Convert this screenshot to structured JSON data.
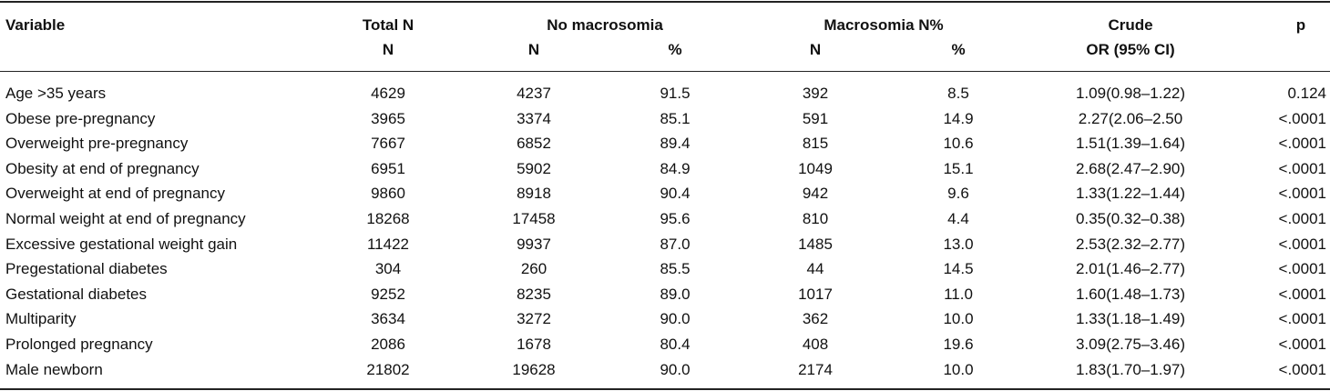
{
  "table": {
    "headers": {
      "variable": "Variable",
      "total_n": "Total N",
      "total_n_sub": "N",
      "no_macro": "No macrosomia",
      "no_macro_n": "N",
      "no_macro_pct": "%",
      "macro": "Macrosomia N%",
      "macro_n": "N",
      "macro_pct": "%",
      "crude": "Crude",
      "crude_sub": "OR (95% CI)",
      "p": "p"
    },
    "rows": [
      {
        "variable": "Age >35 years",
        "total": "4629",
        "no_n": "4237",
        "no_pct": "91.5",
        "m_n": "392",
        "m_pct": "8.5",
        "or": "1.09(0.98–1.22)",
        "p": "0.124"
      },
      {
        "variable": "Obese pre-pregnancy",
        "total": "3965",
        "no_n": "3374",
        "no_pct": "85.1",
        "m_n": "591",
        "m_pct": "14.9",
        "or": "2.27(2.06–2.50",
        "p": "<.0001"
      },
      {
        "variable": "Overweight pre-pregnancy",
        "total": "7667",
        "no_n": "6852",
        "no_pct": "89.4",
        "m_n": "815",
        "m_pct": "10.6",
        "or": "1.51(1.39–1.64)",
        "p": "<.0001"
      },
      {
        "variable": "Obesity at end of pregnancy",
        "total": "6951",
        "no_n": "5902",
        "no_pct": "84.9",
        "m_n": "1049",
        "m_pct": "15.1",
        "or": "2.68(2.47–2.90)",
        "p": "<.0001"
      },
      {
        "variable": "Overweight at end of pregnancy",
        "total": "9860",
        "no_n": "8918",
        "no_pct": "90.4",
        "m_n": "942",
        "m_pct": "9.6",
        "or": "1.33(1.22–1.44)",
        "p": "<.0001"
      },
      {
        "variable": "Normal weight at end of pregnancy",
        "total": "18268",
        "no_n": "17458",
        "no_pct": "95.6",
        "m_n": "810",
        "m_pct": "4.4",
        "or": "0.35(0.32–0.38)",
        "p": "<.0001"
      },
      {
        "variable": "Excessive gestational weight gain",
        "total": "11422",
        "no_n": "9937",
        "no_pct": "87.0",
        "m_n": "1485",
        "m_pct": "13.0",
        "or": "2.53(2.32–2.77)",
        "p": "<.0001"
      },
      {
        "variable": "Pregestational diabetes",
        "total": "304",
        "no_n": "260",
        "no_pct": "85.5",
        "m_n": "44",
        "m_pct": "14.5",
        "or": "2.01(1.46–2.77)",
        "p": "<.0001"
      },
      {
        "variable": "Gestational diabetes",
        "total": "9252",
        "no_n": "8235",
        "no_pct": "89.0",
        "m_n": "1017",
        "m_pct": "11.0",
        "or": "1.60(1.48–1.73)",
        "p": "<.0001"
      },
      {
        "variable": "Multiparity",
        "total": "3634",
        "no_n": "3272",
        "no_pct": "90.0",
        "m_n": "362",
        "m_pct": "10.0",
        "or": "1.33(1.18–1.49)",
        "p": "<.0001"
      },
      {
        "variable": "Prolonged pregnancy",
        "total": "2086",
        "no_n": "1678",
        "no_pct": "80.4",
        "m_n": "408",
        "m_pct": "19.6",
        "or": "3.09(2.75–3.46)",
        "p": "<.0001"
      },
      {
        "variable": "Male newborn",
        "total": "21802",
        "no_n": "19628",
        "no_pct": "90.0",
        "m_n": "2174",
        "m_pct": "10.0",
        "or": "1.83(1.70–1.97)",
        "p": "<.0001"
      }
    ]
  }
}
